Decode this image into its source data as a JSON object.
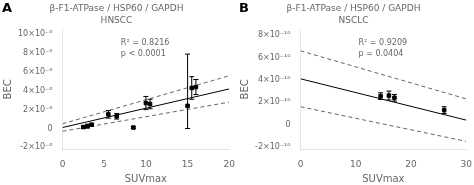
{
  "chart_data": [
    {
      "type": "scatter",
      "panel_label": "A",
      "title": "β-F1-ATPase / HSP60 / GAPDH",
      "subtitle": "HNSCC",
      "xlabel": "SUVmax",
      "ylabel": "BEC",
      "annotations": [
        "R² = 0.8216",
        "p < 0.0001"
      ],
      "grid": false,
      "xlim": [
        0,
        20
      ],
      "xticks": [
        0,
        5,
        10,
        15,
        20
      ],
      "ylim": [
        -2.2e-06,
        1.05e-05
      ],
      "yticks": [
        {
          "value": -2e-06,
          "label": "-2×10⁻⁶"
        },
        0,
        {
          "value": 2e-06,
          "label": "2×10⁻⁶"
        },
        {
          "value": 4e-06,
          "label": "4×10⁻⁶"
        },
        {
          "value": 6e-06,
          "label": "6×10⁻⁶"
        },
        {
          "value": 8e-06,
          "label": "8×10⁻⁶"
        },
        {
          "value": 1e-05,
          "label": "10×10⁻⁶"
        }
      ],
      "series": [
        {
          "type": "scatter",
          "marker": "square",
          "color": "#000000",
          "x": [
            2.5,
            3.0,
            3.5,
            5.5,
            6.5,
            8.5,
            10.0,
            10.5,
            15.0,
            15.5,
            16.0
          ],
          "values": [
            1.5e-07,
            2.5e-07,
            4e-07,
            1.5e-06,
            1.3e-06,
            1e-07,
            2.7e-06,
            2.6e-06,
            2.4e-06,
            4.3e-06,
            4.4e-06
          ],
          "yerr_lo": [
            1.5e-07,
            2e-07,
            1.5e-07,
            4e-07,
            3e-07,
            1e-07,
            7e-07,
            5e-07,
            2.4e-06,
            1.2e-06,
            8e-07
          ],
          "yerr_hi": [
            1.5e-07,
            2e-07,
            1.5e-07,
            4e-07,
            3e-07,
            1e-07,
            7e-07,
            5e-07,
            5.5e-06,
            1.2e-06,
            8e-07
          ]
        },
        {
          "type": "line",
          "line_style": "solid",
          "color": "#000000",
          "x": [
            0,
            20
          ],
          "values": [
            1e-07,
            4.2e-06
          ]
        },
        {
          "type": "line",
          "line_style": "dashed",
          "color": "#666666",
          "x": [
            0,
            20
          ],
          "values": [
            5e-07,
            5.6e-06
          ]
        },
        {
          "type": "line",
          "line_style": "dashed",
          "color": "#666666",
          "x": [
            0,
            20
          ],
          "values": [
            -3e-07,
            2.8e-06
          ]
        }
      ]
    },
    {
      "type": "scatter",
      "panel_label": "B",
      "title": "β-F1-ATPase / HSP60 / GAPDH",
      "subtitle": "NSCLC",
      "xlabel": "SUVmax",
      "ylabel": "BEC",
      "annotations": [
        "R² = 0.9209",
        "p = 0.0404"
      ],
      "grid": false,
      "xlim": [
        0,
        30
      ],
      "xticks": [
        0,
        10,
        20,
        30
      ],
      "ylim": [
        -2.2e-10,
        8.5e-10
      ],
      "yticks": [
        {
          "value": -2e-10,
          "label": "-2×10⁻¹⁰"
        },
        0,
        {
          "value": 2e-10,
          "label": "2×10⁻¹⁰"
        },
        {
          "value": 4e-10,
          "label": "4×10⁻¹⁰"
        },
        {
          "value": 6e-10,
          "label": "6×10⁻¹⁰"
        },
        {
          "value": 8e-10,
          "label": "8×10⁻¹⁰"
        }
      ],
      "series": [
        {
          "type": "scatter",
          "marker": "square",
          "color": "#000000",
          "x": [
            14.5,
            16.0,
            17.0,
            26.0
          ],
          "values": [
            2.55e-10,
            2.6e-10,
            2.4e-10,
            1.3e-10
          ],
          "yerr_lo": [
            3e-11,
            4e-11,
            3e-11,
            3e-11
          ],
          "yerr_hi": [
            3e-11,
            4e-11,
            3e-11,
            3e-11
          ]
        },
        {
          "type": "line",
          "line_style": "solid",
          "color": "#000000",
          "x": [
            0,
            30
          ],
          "values": [
            4.1e-10,
            4e-11
          ]
        },
        {
          "type": "line",
          "line_style": "dashed",
          "color": "#666666",
          "x": [
            0,
            30
          ],
          "values": [
            6.6e-10,
            2.3e-10
          ]
        },
        {
          "type": "line",
          "line_style": "dashed",
          "color": "#666666",
          "x": [
            0,
            30
          ],
          "values": [
            1.6e-10,
            -1.5e-10
          ]
        }
      ]
    }
  ]
}
